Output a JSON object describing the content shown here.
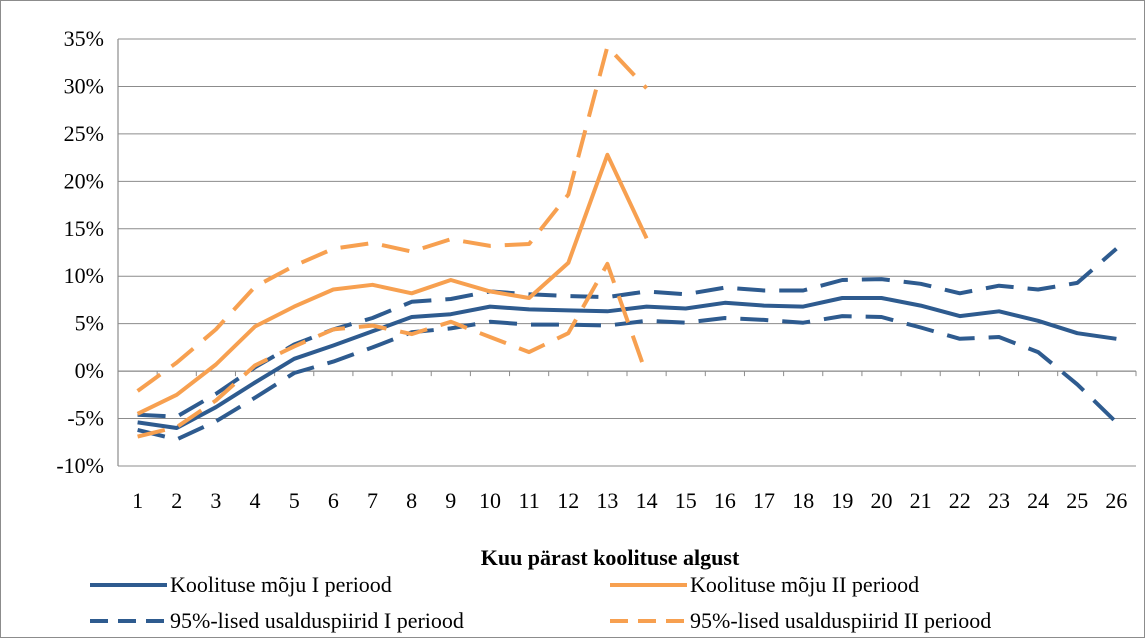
{
  "chart_data": {
    "type": "line",
    "xlabel": "Kuu pärast koolituse algust",
    "ylabel": "",
    "ylim": [
      -10,
      35
    ],
    "yticks": [
      -10,
      -5,
      0,
      5,
      10,
      15,
      20,
      25,
      30,
      35
    ],
    "ytick_labels": [
      "-10%",
      "-5%",
      "0%",
      "5%",
      "10%",
      "15%",
      "20%",
      "25%",
      "30%",
      "35%"
    ],
    "categories": [
      "1",
      "2",
      "3",
      "4",
      "5",
      "6",
      "7",
      "8",
      "9",
      "10",
      "11",
      "12",
      "13",
      "14",
      "15",
      "16",
      "17",
      "18",
      "19",
      "20",
      "21",
      "22",
      "23",
      "24",
      "25",
      "26"
    ],
    "grid": "horizontal",
    "legend_position": "bottom",
    "colors": {
      "period1": "#2e5b8f",
      "period2": "#f7a050",
      "gridline": "#8c8c8c",
      "axis": "#8c8c8c"
    },
    "series": [
      {
        "name": "Koolituse mõju I periood",
        "key": "p1_mean",
        "style": "solid",
        "color": "#2e5b8f",
        "values": [
          -5.4,
          -6.0,
          -3.8,
          -1.2,
          1.3,
          2.7,
          4.2,
          5.7,
          6.0,
          6.8,
          6.5,
          6.4,
          6.3,
          6.8,
          6.6,
          7.2,
          6.9,
          6.8,
          7.7,
          7.7,
          6.9,
          5.8,
          6.3,
          5.3,
          4.0,
          3.4
        ]
      },
      {
        "name": "95%-lised usalduspiirid I periood",
        "key": "p1_upper",
        "style": "dashed",
        "color": "#2e5b8f",
        "values": [
          -4.6,
          -4.8,
          -2.4,
          0.4,
          2.8,
          4.4,
          5.6,
          7.3,
          7.6,
          8.4,
          8.1,
          7.9,
          7.8,
          8.4,
          8.1,
          8.8,
          8.5,
          8.5,
          9.6,
          9.7,
          9.2,
          8.2,
          9.0,
          8.6,
          9.3,
          12.9
        ]
      },
      {
        "name": "",
        "key": "p1_lower",
        "style": "dashed",
        "color": "#2e5b8f",
        "values": [
          -6.2,
          -7.2,
          -5.3,
          -2.8,
          -0.2,
          1.0,
          2.5,
          4.1,
          4.5,
          5.2,
          4.9,
          4.9,
          4.8,
          5.3,
          5.1,
          5.6,
          5.4,
          5.1,
          5.8,
          5.7,
          4.6,
          3.4,
          3.6,
          2.0,
          -1.4,
          -5.4
        ]
      },
      {
        "name": "Koolituse mõju II periood",
        "key": "p2_mean",
        "style": "solid",
        "color": "#f7a050",
        "values": [
          -4.5,
          -2.5,
          0.7,
          4.7,
          6.8,
          8.6,
          9.1,
          8.2,
          9.6,
          8.4,
          7.7,
          11.4,
          22.8,
          14.0,
          null,
          null,
          null,
          null,
          null,
          null,
          null,
          null,
          null,
          null,
          null,
          null
        ]
      },
      {
        "name": "95%-lised usalduspiirid II periood",
        "key": "p2_upper",
        "style": "dashed",
        "color": "#f7a050",
        "values": [
          -2.1,
          0.9,
          4.4,
          8.9,
          11.1,
          12.9,
          13.5,
          12.6,
          13.9,
          13.2,
          13.4,
          18.6,
          34.2,
          29.8,
          null,
          null,
          null,
          null,
          null,
          null,
          null,
          null,
          null,
          null,
          null,
          null
        ]
      },
      {
        "name": "",
        "key": "p2_lower",
        "style": "dashed",
        "color": "#f7a050",
        "values": [
          -6.9,
          -5.9,
          -3.1,
          0.6,
          2.6,
          4.4,
          4.8,
          3.9,
          5.2,
          3.6,
          2.0,
          4.0,
          11.3,
          -0.4,
          null,
          null,
          null,
          null,
          null,
          null,
          null,
          null,
          null,
          null,
          null,
          null
        ]
      }
    ],
    "legend": [
      {
        "label": "Koolituse mõju I periood",
        "color": "#2e5b8f",
        "style": "solid"
      },
      {
        "label": "Koolituse mõju II periood",
        "color": "#f7a050",
        "style": "solid"
      },
      {
        "label": "95%-lised usalduspiirid I periood",
        "color": "#2e5b8f",
        "style": "dashed"
      },
      {
        "label": "95%-lised usalduspiirid II periood",
        "color": "#f7a050",
        "style": "dashed"
      }
    ]
  }
}
